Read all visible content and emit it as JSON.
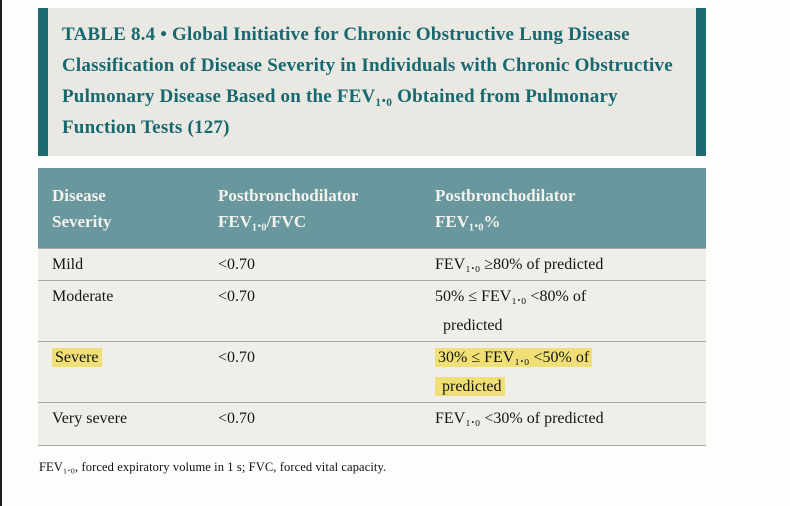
{
  "title": "TABLE 8.4 • Global Initiative for Chronic Obstructive Lung Disease Classification of Disease Severity in Individuals with Chronic Obstructive Pulmonary Disease Based on the FEV₁.₀ Obtained from Pulmonary Function Tests (127)",
  "table": {
    "headers": {
      "severity": "Disease\nSeverity",
      "fev_fvc": "Postbronchodilator\nFEV₁.₀/FVC",
      "fev_pct": "Postbronchodilator\nFEV₁.₀%"
    },
    "rows": [
      {
        "severity": "Mild",
        "fev_fvc": "<0.70",
        "fev_pct": "FEV₁.₀ ≥80% of predicted"
      },
      {
        "severity": "Moderate",
        "fev_fvc": "<0.70",
        "fev_pct": "50% ≤ FEV₁.₀ <80% of\n  predicted"
      },
      {
        "severity": "Severe",
        "fev_fvc": "<0.70",
        "fev_pct": "30% ≤ FEV₁.₀ <50% of\n predicted",
        "highlighted": true
      },
      {
        "severity": "Very severe",
        "fev_fvc": "<0.70",
        "fev_pct": "FEV₁.₀ <30% of predicted"
      }
    ]
  },
  "footnote": "FEV₁.₀, forced expiratory volume in 1 s; FVC, forced vital capacity.",
  "colors": {
    "teal_dark": "#1c6a72",
    "teal_header": "#68979e",
    "title_bg": "#e9e8e3",
    "title_text": "#17686f",
    "row_bg": "#f0eee9",
    "highlight_yellow": "#f0df76"
  }
}
